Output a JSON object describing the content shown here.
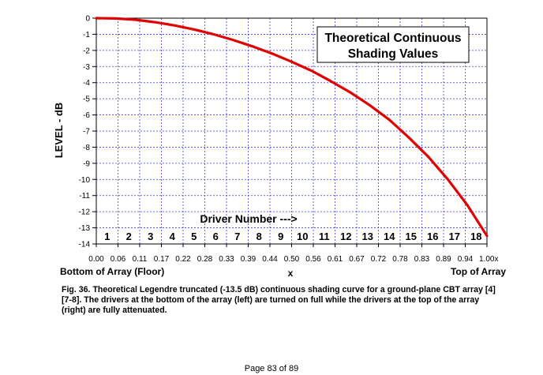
{
  "chart_data": {
    "type": "line",
    "title_lines": [
      "Theoretical Continuous",
      "Shading Values"
    ],
    "xlabel": "x",
    "ylabel": "LEVEL - dB",
    "xlim": [
      0,
      1
    ],
    "ylim": [
      -14,
      0
    ],
    "x_ticks": [
      "0.00",
      "0.06",
      "0.11",
      "0.17",
      "0.22",
      "0.28",
      "0.33",
      "0.39",
      "0.44",
      "0.50",
      "0.56",
      "0.61",
      "0.67",
      "0.72",
      "0.78",
      "0.83",
      "0.89",
      "0.94",
      "1.00x"
    ],
    "y_ticks": [
      "0",
      "-1",
      "-2",
      "-3",
      "-4",
      "-5",
      "-6",
      "-7",
      "-8",
      "-9",
      "-10",
      "-11",
      "-12",
      "-13",
      "-14"
    ],
    "grid": true,
    "x_left_label": "Bottom of Array (Floor)",
    "x_right_label": "Top of Array",
    "driver_axis_label": "Driver Number --->",
    "driver_numbers": [
      "1",
      "2",
      "3",
      "4",
      "5",
      "6",
      "7",
      "8",
      "9",
      "10",
      "11",
      "12",
      "13",
      "14",
      "15",
      "16",
      "17",
      "18"
    ],
    "series": [
      {
        "color": "#e00000",
        "x": [
          0,
          0.05,
          0.1,
          0.15,
          0.2,
          0.25,
          0.3,
          0.35,
          0.4,
          0.45,
          0.5,
          0.55,
          0.6,
          0.65,
          0.7,
          0.75,
          0.8,
          0.85,
          0.9,
          0.95,
          1.0
        ],
        "y": [
          0,
          -0.02,
          -0.1,
          -0.25,
          -0.45,
          -0.7,
          -1.0,
          -1.35,
          -1.75,
          -2.2,
          -2.7,
          -3.25,
          -3.9,
          -4.6,
          -5.4,
          -6.3,
          -7.4,
          -8.6,
          -10.0,
          -11.6,
          -13.5
        ]
      }
    ]
  },
  "caption": "Fig.  36. Theoretical Legendre truncated (-13.5 dB) continuous shading curve for a ground-plane CBT array [4] [7-8]. The drivers at the bottom of the array (left) are turned on full while the drivers at the top of the array (right) are fully attenuated.",
  "page_number": "Page 83 of 89"
}
